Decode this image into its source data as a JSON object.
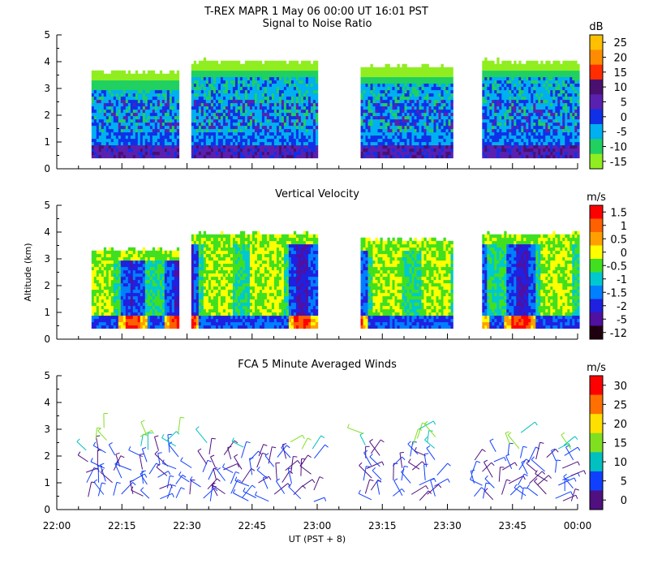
{
  "header": {
    "title_line": "T-REX   MAPR   1 May 06   00:00 UT   16:01   PST"
  },
  "chart_data": [
    {
      "type": "heatmap",
      "title": "Signal to Noise Ratio",
      "xlabel": "",
      "ylabel": "",
      "xlim": [
        "22:00",
        "00:00"
      ],
      "ylim": [
        0,
        5
      ],
      "y_ticks": [
        "0",
        "1",
        "2",
        "3",
        "4",
        "5"
      ],
      "colorbar": {
        "unit": "dB",
        "ticks": [
          "25",
          "20",
          "15",
          "10",
          "5",
          "0",
          "-5",
          "-10",
          "-15"
        ],
        "colors": [
          "#ffc000",
          "#ff8c00",
          "#ff2d00",
          "#4a1070",
          "#5a20b0",
          "#1030e8",
          "#00b0f0",
          "#20d060",
          "#90ee20"
        ]
      },
      "data_segments_ut": [
        [
          "22:08",
          "22:28"
        ],
        [
          "22:31",
          "23:00"
        ],
        [
          "23:10",
          "23:31"
        ],
        [
          "23:38",
          "00:00"
        ]
      ]
    },
    {
      "type": "heatmap",
      "title": "Vertical Velocity",
      "xlabel": "",
      "ylabel": "Altitude (km)",
      "xlim": [
        "22:00",
        "00:00"
      ],
      "ylim": [
        0,
        5
      ],
      "y_ticks": [
        "0",
        "1",
        "2",
        "3",
        "4",
        "5"
      ],
      "colorbar": {
        "unit": "m/s",
        "ticks": [
          "1.5",
          "1",
          "0.5",
          "0",
          "-0.5",
          "-1",
          "-1.5",
          "-2",
          "-5",
          "-12"
        ],
        "colors": [
          "#ff0000",
          "#ff6000",
          "#ffa000",
          "#ffff00",
          "#40e020",
          "#00c8d0",
          "#0080ff",
          "#2020e0",
          "#5010a0",
          "#200010"
        ]
      },
      "data_segments_ut": [
        [
          "22:08",
          "22:28"
        ],
        [
          "22:31",
          "23:00"
        ],
        [
          "23:10",
          "23:31"
        ],
        [
          "23:38",
          "00:00"
        ]
      ]
    },
    {
      "type": "scatter",
      "title": "FCA 5 Minute Averaged Winds",
      "xlabel": "UT  (PST + 8)",
      "ylabel": "",
      "xlim": [
        "22:00",
        "00:00"
      ],
      "ylim": [
        0,
        5
      ],
      "x_ticks": [
        "22:00",
        "22:15",
        "22:30",
        "22:45",
        "23:00",
        "23:15",
        "23:30",
        "23:45",
        "00:00"
      ],
      "y_ticks": [
        "0",
        "1",
        "2",
        "3",
        "4",
        "5"
      ],
      "colorbar": {
        "unit": "m/s",
        "ticks": [
          "30",
          "25",
          "20",
          "15",
          "10",
          "5",
          "0"
        ],
        "colors": [
          "#ff0000",
          "#ff7000",
          "#ffe000",
          "#80e020",
          "#00c0c0",
          "#1040ff",
          "#501080"
        ]
      }
    }
  ]
}
